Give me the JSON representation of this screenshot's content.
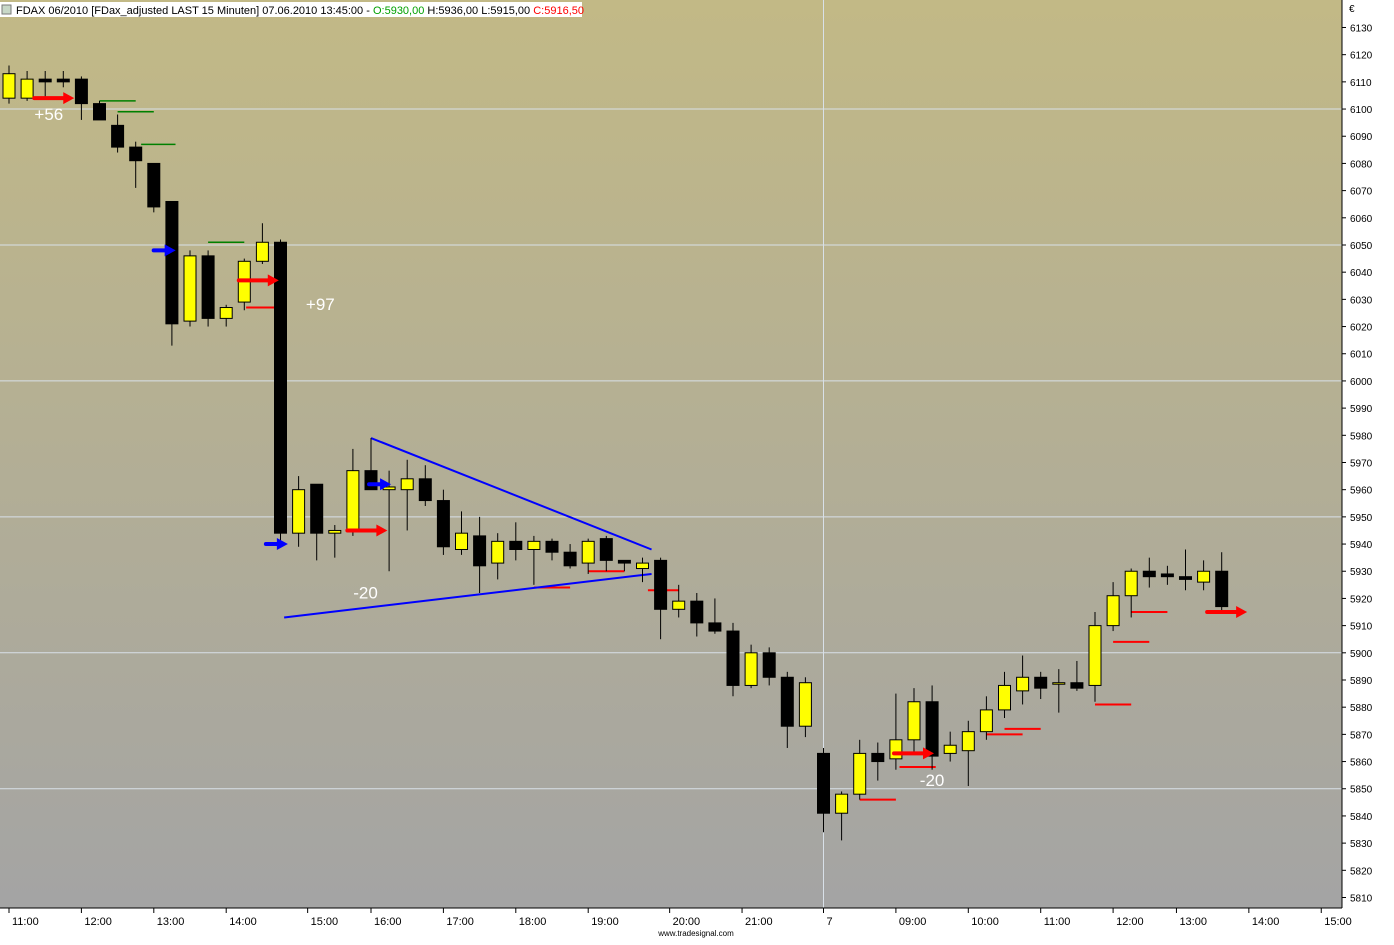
{
  "header": {
    "symbol": "FDAX 06/2010",
    "params": "[FDax_adjusted LAST 15 Minuten]",
    "datetime": "07.06.2010 13:45:00",
    "open": "O:5930,00",
    "high": "H:5936,00",
    "low": "L:5915,00",
    "close": "C:5916,50"
  },
  "footer": {
    "watermark": "www.tradesignal.com"
  },
  "colors": {
    "bg_top": "#c2b986",
    "bg_bottom": "#a4a4a4",
    "bull_fill": "#ffff00",
    "bear_fill": "#000000",
    "wick": "#000000",
    "long_entry_arrow": "#ff0000",
    "short_entry_arrow": "#0000ff",
    "trendline": "#0000ff",
    "stop_level": "#ff0000",
    "target_level": "#008000",
    "grid": "#d8e0e8",
    "annotation_text": "#ffffff",
    "header_open": "#00a000",
    "header_close": "#ff0000"
  },
  "chart_data": {
    "type": "candlestick",
    "currency": "€",
    "ylim": [
      5805,
      6140
    ],
    "y_ticks": [
      5810,
      5820,
      5830,
      5840,
      5850,
      5860,
      5870,
      5880,
      5890,
      5900,
      5910,
      5920,
      5930,
      5940,
      5950,
      5960,
      5970,
      5980,
      5990,
      6000,
      6010,
      6020,
      6030,
      6040,
      6050,
      6060,
      6070,
      6080,
      6090,
      6100,
      6110,
      6120,
      6130
    ],
    "x_ticks": [
      {
        "i": 0,
        "label": "11:00"
      },
      {
        "i": 4,
        "label": "12:00"
      },
      {
        "i": 8,
        "label": "13:00"
      },
      {
        "i": 12,
        "label": "14:00"
      },
      {
        "i": 16.5,
        "label": "15:00"
      },
      {
        "i": 20,
        "label": "16:00"
      },
      {
        "i": 24,
        "label": "17:00"
      },
      {
        "i": 28,
        "label": "18:00"
      },
      {
        "i": 32,
        "label": "19:00"
      },
      {
        "i": 36.5,
        "label": "20:00"
      },
      {
        "i": 40.5,
        "label": "21:00"
      },
      {
        "i": 45,
        "label": "7"
      },
      {
        "i": 49,
        "label": "09:00"
      },
      {
        "i": 53,
        "label": "10:00"
      },
      {
        "i": 57,
        "label": "11:00"
      },
      {
        "i": 61,
        "label": "12:00"
      },
      {
        "i": 64.5,
        "label": "13:00"
      },
      {
        "i": 68.5,
        "label": "14:00"
      },
      {
        "i": 72.5,
        "label": "15:00"
      }
    ],
    "day_separator_i": 45,
    "candles": [
      {
        "o": 6104,
        "h": 6116,
        "l": 6102,
        "c": 6113
      },
      {
        "o": 6104,
        "h": 6114,
        "l": 6103,
        "c": 6111
      },
      {
        "o": 6111,
        "h": 6114,
        "l": 6104,
        "c": 6110
      },
      {
        "o": 6111,
        "h": 6114,
        "l": 6108,
        "c": 6110
      },
      {
        "o": 6111,
        "h": 6112,
        "l": 6096,
        "c": 6102
      },
      {
        "o": 6102,
        "h": 6103,
        "l": 6096,
        "c": 6096
      },
      {
        "o": 6094,
        "h": 6098,
        "l": 6084,
        "c": 6086
      },
      {
        "o": 6086,
        "h": 6088,
        "l": 6071,
        "c": 6081
      },
      {
        "o": 6080,
        "h": 6080,
        "l": 6062,
        "c": 6064
      },
      {
        "o": 6066,
        "h": 6066,
        "l": 6013,
        "c": 6021
      },
      {
        "o": 6022,
        "h": 6048,
        "l": 6020,
        "c": 6046
      },
      {
        "o": 6046,
        "h": 6048,
        "l": 6020,
        "c": 6023
      },
      {
        "o": 6023,
        "h": 6028,
        "l": 6020,
        "c": 6027
      },
      {
        "o": 6029,
        "h": 6045,
        "l": 6026,
        "c": 6044
      },
      {
        "o": 6044,
        "h": 6058,
        "l": 6043,
        "c": 6051
      },
      {
        "o": 6051,
        "h": 6052,
        "l": 5941,
        "c": 5944
      },
      {
        "o": 5944,
        "h": 5965,
        "l": 5939,
        "c": 5960
      },
      {
        "o": 5962,
        "h": 5962,
        "l": 5934,
        "c": 5944
      },
      {
        "o": 5944,
        "h": 5947,
        "l": 5935,
        "c": 5945
      },
      {
        "o": 5945,
        "h": 5975,
        "l": 5943,
        "c": 5967
      },
      {
        "o": 5967,
        "h": 5979,
        "l": 5960,
        "c": 5960
      },
      {
        "o": 5960,
        "h": 5967,
        "l": 5930,
        "c": 5961
      },
      {
        "o": 5960,
        "h": 5971,
        "l": 5945,
        "c": 5964
      },
      {
        "o": 5964,
        "h": 5969,
        "l": 5954,
        "c": 5956
      },
      {
        "o": 5956,
        "h": 5960,
        "l": 5936,
        "c": 5939
      },
      {
        "o": 5938,
        "h": 5952,
        "l": 5936,
        "c": 5944
      },
      {
        "o": 5943,
        "h": 5950,
        "l": 5922,
        "c": 5932
      },
      {
        "o": 5933,
        "h": 5944,
        "l": 5927,
        "c": 5941
      },
      {
        "o": 5941,
        "h": 5948,
        "l": 5934,
        "c": 5938
      },
      {
        "o": 5938,
        "h": 5943,
        "l": 5925,
        "c": 5941
      },
      {
        "o": 5941,
        "h": 5942,
        "l": 5934,
        "c": 5937
      },
      {
        "o": 5937,
        "h": 5940,
        "l": 5931,
        "c": 5932
      },
      {
        "o": 5933,
        "h": 5942,
        "l": 5929,
        "c": 5941
      },
      {
        "o": 5942,
        "h": 5943,
        "l": 5930,
        "c": 5934
      },
      {
        "o": 5934,
        "h": 5934,
        "l": 5930,
        "c": 5933
      },
      {
        "o": 5931,
        "h": 5935,
        "l": 5926,
        "c": 5933
      },
      {
        "o": 5934,
        "h": 5935,
        "l": 5905,
        "c": 5916
      },
      {
        "o": 5916,
        "h": 5925,
        "l": 5913,
        "c": 5919
      },
      {
        "o": 5919,
        "h": 5922,
        "l": 5906,
        "c": 5911
      },
      {
        "o": 5911,
        "h": 5920,
        "l": 5907,
        "c": 5908
      },
      {
        "o": 5908,
        "h": 5911,
        "l": 5884,
        "c": 5888
      },
      {
        "o": 5888,
        "h": 5903,
        "l": 5887,
        "c": 5900
      },
      {
        "o": 5900,
        "h": 5902,
        "l": 5888,
        "c": 5891
      },
      {
        "o": 5891,
        "h": 5893,
        "l": 5865,
        "c": 5873
      },
      {
        "o": 5873,
        "h": 5891,
        "l": 5869,
        "c": 5889
      },
      {
        "o": 5863,
        "h": 5865,
        "l": 5834,
        "c": 5841
      },
      {
        "o": 5841,
        "h": 5849,
        "l": 5831,
        "c": 5848
      },
      {
        "o": 5848,
        "h": 5868,
        "l": 5846,
        "c": 5863
      },
      {
        "o": 5863,
        "h": 5867,
        "l": 5853,
        "c": 5860
      },
      {
        "o": 5861,
        "h": 5885,
        "l": 5857,
        "c": 5868
      },
      {
        "o": 5868,
        "h": 5887,
        "l": 5863,
        "c": 5882
      },
      {
        "o": 5882,
        "h": 5888,
        "l": 5857,
        "c": 5862
      },
      {
        "o": 5863,
        "h": 5871,
        "l": 5860,
        "c": 5866
      },
      {
        "o": 5864,
        "h": 5875,
        "l": 5851,
        "c": 5871
      },
      {
        "o": 5871,
        "h": 5884,
        "l": 5868,
        "c": 5879
      },
      {
        "o": 5879,
        "h": 5893,
        "l": 5876,
        "c": 5888
      },
      {
        "o": 5886,
        "h": 5899,
        "l": 5881,
        "c": 5891
      },
      {
        "o": 5891,
        "h": 5893,
        "l": 5883,
        "c": 5887
      },
      {
        "o": 5889,
        "h": 5894,
        "l": 5878,
        "c": 5889
      },
      {
        "o": 5889,
        "h": 5897,
        "l": 5886,
        "c": 5887
      },
      {
        "o": 5888,
        "h": 5915,
        "l": 5882,
        "c": 5910
      },
      {
        "o": 5910,
        "h": 5926,
        "l": 5908,
        "c": 5921
      },
      {
        "o": 5921,
        "h": 5931,
        "l": 5913,
        "c": 5930
      },
      {
        "o": 5930,
        "h": 5935,
        "l": 5924,
        "c": 5928
      },
      {
        "o": 5929,
        "h": 5932,
        "l": 5925,
        "c": 5928
      },
      {
        "o": 5928,
        "h": 5938,
        "l": 5923,
        "c": 5927
      },
      {
        "o": 5926,
        "h": 5934,
        "l": 5923,
        "c": 5930
      },
      {
        "o": 5930,
        "h": 5937,
        "l": 5915,
        "c": 5917
      }
    ],
    "trendlines": [
      {
        "i1": 15.2,
        "p1": 5913,
        "i2": 35.5,
        "p2": 5929
      },
      {
        "i1": 20,
        "p1": 5979,
        "i2": 35.5,
        "p2": 5938
      }
    ],
    "long_entry_arrows": [
      {
        "i": 2.5,
        "p": 6104
      },
      {
        "i": 13.8,
        "p": 6037
      },
      {
        "i": 19.8,
        "p": 5945
      },
      {
        "i": 50,
        "p": 5863
      },
      {
        "i": 67.3,
        "p": 5915
      }
    ],
    "short_entry_arrows": [
      {
        "i": 8.6,
        "p": 6048
      },
      {
        "i": 14.8,
        "p": 5940
      },
      {
        "i": 20.5,
        "p": 5962
      }
    ],
    "stop_levels": [
      {
        "i1": 13.1,
        "i2": 15,
        "p": 6027
      },
      {
        "i1": 29,
        "i2": 31,
        "p": 5924
      },
      {
        "i1": 32,
        "i2": 34,
        "p": 5930
      },
      {
        "i1": 35.3,
        "i2": 37,
        "p": 5923
      },
      {
        "i1": 47,
        "i2": 49,
        "p": 5846
      },
      {
        "i1": 49.2,
        "i2": 51.2,
        "p": 5858
      },
      {
        "i1": 54,
        "i2": 56,
        "p": 5870
      },
      {
        "i1": 55,
        "i2": 57,
        "p": 5872
      },
      {
        "i1": 60,
        "i2": 62,
        "p": 5881
      },
      {
        "i1": 61,
        "i2": 63,
        "p": 5904
      },
      {
        "i1": 62,
        "i2": 64,
        "p": 5915
      }
    ],
    "target_levels": [
      {
        "i1": 5,
        "i2": 7,
        "p": 6103
      },
      {
        "i1": 6,
        "i2": 8,
        "p": 6099
      },
      {
        "i1": 7.3,
        "i2": 9.2,
        "p": 6087
      },
      {
        "i1": 11,
        "i2": 13,
        "p": 6051
      }
    ],
    "annotations": [
      {
        "text": "+56",
        "i": 2.2,
        "p": 6096
      },
      {
        "text": "+97",
        "i": 17.2,
        "p": 6026
      },
      {
        "text": "-20",
        "i": 19.7,
        "p": 5920
      },
      {
        "text": "-20",
        "i": 51,
        "p": 5851
      }
    ]
  }
}
